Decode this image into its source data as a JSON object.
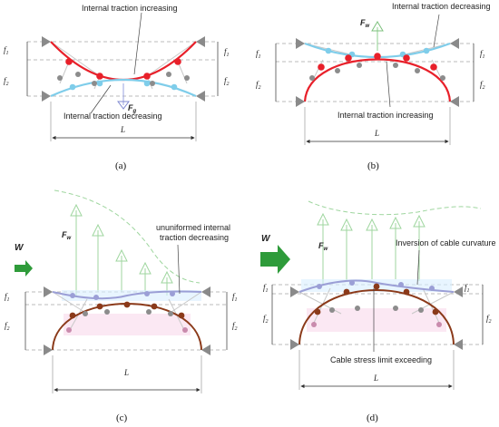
{
  "panel_a": {
    "caption": "(a)",
    "label_top": "Internal traction increasing",
    "label_bottom": "Internal traction decreasing",
    "force": "F",
    "force_sub": "g",
    "f1": "f",
    "f1_sub": "1",
    "f2": "f",
    "f2_sub": "2",
    "span": "L"
  },
  "panel_b": {
    "caption": "(b)",
    "label_top": "Internal traction decreasing",
    "label_bottom": "Internal traction increasing",
    "force": "F",
    "force_sub": "w",
    "f1": "f",
    "f1_sub": "1",
    "f2": "f",
    "f2_sub": "2",
    "span": "L"
  },
  "panel_c": {
    "caption": "(c)",
    "label_line1": "ununiformed internal",
    "label_line2": "traction decreasing",
    "wind": "W",
    "force": "F",
    "force_sub": "w",
    "f1": "f",
    "f1_sub": "1",
    "f2": "f",
    "f2_sub": "2",
    "span": "L"
  },
  "panel_d": {
    "caption": "(d)",
    "label_top": "Inversion of cable curvature",
    "label_bottom": "Cable stress limit exceeding",
    "wind": "W",
    "force": "F",
    "force_sub": "w",
    "f1": "f",
    "f1_sub": "1",
    "f2": "f",
    "f2_sub": "2",
    "span": "L"
  },
  "colors": {
    "red_cable": "#e8202a",
    "blue_cable": "#7fcdea",
    "brown_cable": "#8b3a1a",
    "purple_cable": "#9b9fd6",
    "grey_node": "#8c8c8c",
    "wind_arrow": "#2e9b3a",
    "force_arrow": "#8fd08f"
  }
}
